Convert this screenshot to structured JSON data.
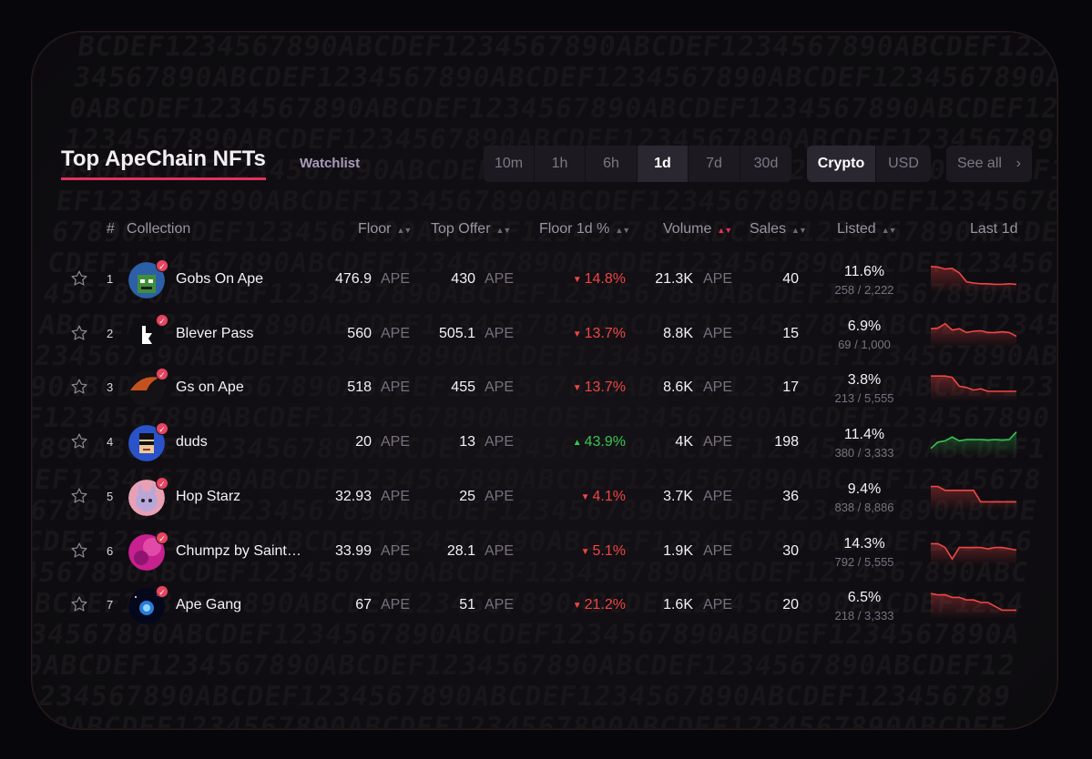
{
  "title": "Top ApeChain NFTs",
  "watchlist_label": "Watchlist",
  "time_ranges": [
    "10m",
    "1h",
    "6h",
    "1d",
    "7d",
    "30d"
  ],
  "active_time_range": "1d",
  "currency_options": [
    "Crypto",
    "USD"
  ],
  "active_currency": "Crypto",
  "see_all_label": "See all",
  "background_text": "ABCDEF1234567890ABCDEF1234567890ABCDEF1234567890ABCDEF1234567890",
  "columns": {
    "rank": "#",
    "collection": "Collection",
    "floor": "Floor",
    "top_offer": "Top Offer",
    "floor_change": "Floor 1d %",
    "volume": "Volume",
    "sales": "Sales",
    "listed": "Listed",
    "last": "Last 1d"
  },
  "colors": {
    "accent": "#e0325c",
    "negative": "#f04545",
    "positive": "#36c552",
    "muted": "#77717f"
  },
  "rows": [
    {
      "rank": "1",
      "name": "Gobs On Ape",
      "floor": "476.9",
      "floor_unit": "APE",
      "offer": "430",
      "offer_unit": "APE",
      "change": "14.8%",
      "direction": "down",
      "volume": "21.3K",
      "volume_unit": "APE",
      "sales": "40",
      "listed_pct": "11.6%",
      "listed_count": "258 / 2,222",
      "avatar_icon": "goblin-avatar-icon",
      "spark": [
        0.1,
        0.12,
        0.2,
        0.18,
        0.35,
        0.7,
        0.75,
        0.78,
        0.78,
        0.8,
        0.8,
        0.78,
        0.8
      ]
    },
    {
      "rank": "2",
      "name": "Blever Pass",
      "floor": "560",
      "floor_unit": "APE",
      "offer": "505.1",
      "offer_unit": "APE",
      "change": "13.7%",
      "direction": "down",
      "volume": "8.8K",
      "volume_unit": "APE",
      "sales": "15",
      "listed_pct": "6.9%",
      "listed_count": "69 / 1,000",
      "avatar_icon": "blever-logo-icon",
      "spark": [
        0.4,
        0.38,
        0.2,
        0.45,
        0.4,
        0.55,
        0.5,
        0.48,
        0.55,
        0.55,
        0.52,
        0.55,
        0.7
      ]
    },
    {
      "rank": "3",
      "name": "Gs on Ape",
      "floor": "518",
      "floor_unit": "APE",
      "offer": "455",
      "offer_unit": "APE",
      "change": "13.7%",
      "direction": "down",
      "volume": "8.6K",
      "volume_unit": "APE",
      "sales": "17",
      "listed_pct": "3.8%",
      "listed_count": "213 / 5,555",
      "avatar_icon": "gs-avatar-icon",
      "spark": [
        0.15,
        0.15,
        0.15,
        0.2,
        0.55,
        0.6,
        0.7,
        0.65,
        0.75,
        0.75,
        0.75,
        0.75,
        0.75
      ]
    },
    {
      "rank": "4",
      "name": "duds",
      "floor": "20",
      "floor_unit": "APE",
      "offer": "13",
      "offer_unit": "APE",
      "change": "43.9%",
      "direction": "up",
      "volume": "4K",
      "volume_unit": "APE",
      "sales": "198",
      "listed_pct": "11.4%",
      "listed_count": "380 / 3,333",
      "avatar_icon": "duds-avatar-icon",
      "spark": [
        0.85,
        0.6,
        0.55,
        0.4,
        0.55,
        0.5,
        0.5,
        0.5,
        0.52,
        0.5,
        0.52,
        0.5,
        0.2
      ]
    },
    {
      "rank": "5",
      "name": "Hop Starz",
      "floor": "32.93",
      "floor_unit": "APE",
      "offer": "25",
      "offer_unit": "APE",
      "change": "4.1%",
      "direction": "down",
      "volume": "3.7K",
      "volume_unit": "APE",
      "sales": "36",
      "listed_pct": "9.4%",
      "listed_count": "838 / 8,886",
      "avatar_icon": "hop-starz-avatar-icon",
      "spark": [
        0.2,
        0.2,
        0.35,
        0.35,
        0.35,
        0.35,
        0.35,
        0.8,
        0.8,
        0.8,
        0.8,
        0.8,
        0.8
      ]
    },
    {
      "rank": "6",
      "name": "Chumpz by Saint…",
      "floor": "33.99",
      "floor_unit": "APE",
      "offer": "28.1",
      "offer_unit": "APE",
      "change": "5.1%",
      "direction": "down",
      "volume": "1.9K",
      "volume_unit": "APE",
      "sales": "30",
      "listed_pct": "14.3%",
      "listed_count": "792 / 5,555",
      "avatar_icon": "chumpz-avatar-icon",
      "spark": [
        0.3,
        0.3,
        0.45,
        0.9,
        0.45,
        0.45,
        0.45,
        0.45,
        0.5,
        0.45,
        0.45,
        0.5,
        0.55
      ]
    },
    {
      "rank": "7",
      "name": "Ape Gang",
      "floor": "67",
      "floor_unit": "APE",
      "offer": "51",
      "offer_unit": "APE",
      "change": "21.2%",
      "direction": "down",
      "volume": "1.6K",
      "volume_unit": "APE",
      "sales": "20",
      "listed_pct": "6.5%",
      "listed_count": "218 / 3,333",
      "avatar_icon": "ape-gang-avatar-icon",
      "spark": [
        0.15,
        0.2,
        0.2,
        0.3,
        0.3,
        0.4,
        0.4,
        0.5,
        0.5,
        0.65,
        0.8,
        0.8,
        0.8
      ]
    }
  ]
}
